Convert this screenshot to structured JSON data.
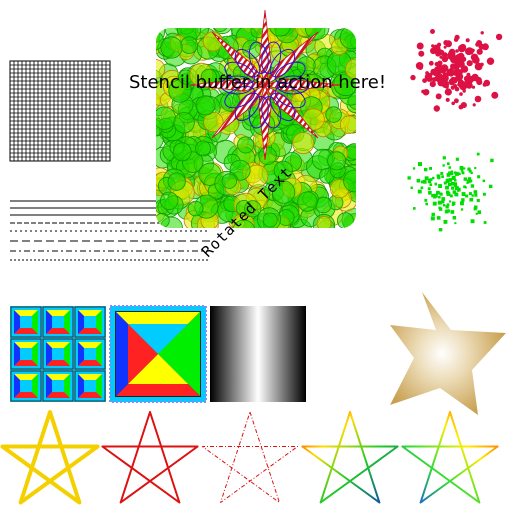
{
  "texts": {
    "stencil": "Stencil buffer in action here!",
    "rotated": "Rotated Text"
  },
  "colors": {
    "bubbles_green": "#22dd00",
    "bubbles_yellow": "#e8e800",
    "petals_red": "#cc1122",
    "flower_blue": "#3311cc",
    "splatter_red": "#dd1144",
    "splatter_green": "#00dd00",
    "star_yellow": "#f5d000",
    "star_red": "#dd1111",
    "star_gold": "#c8a050",
    "dot_red": "#cc0000"
  },
  "icons": [
    "grid-pattern",
    "line-styles",
    "bubble-cluster",
    "flower-star",
    "red-splatter",
    "green-splatter",
    "tiled-pattern",
    "pyramid-square",
    "gray-gradient",
    "gradient-star",
    "star-outlines"
  ]
}
